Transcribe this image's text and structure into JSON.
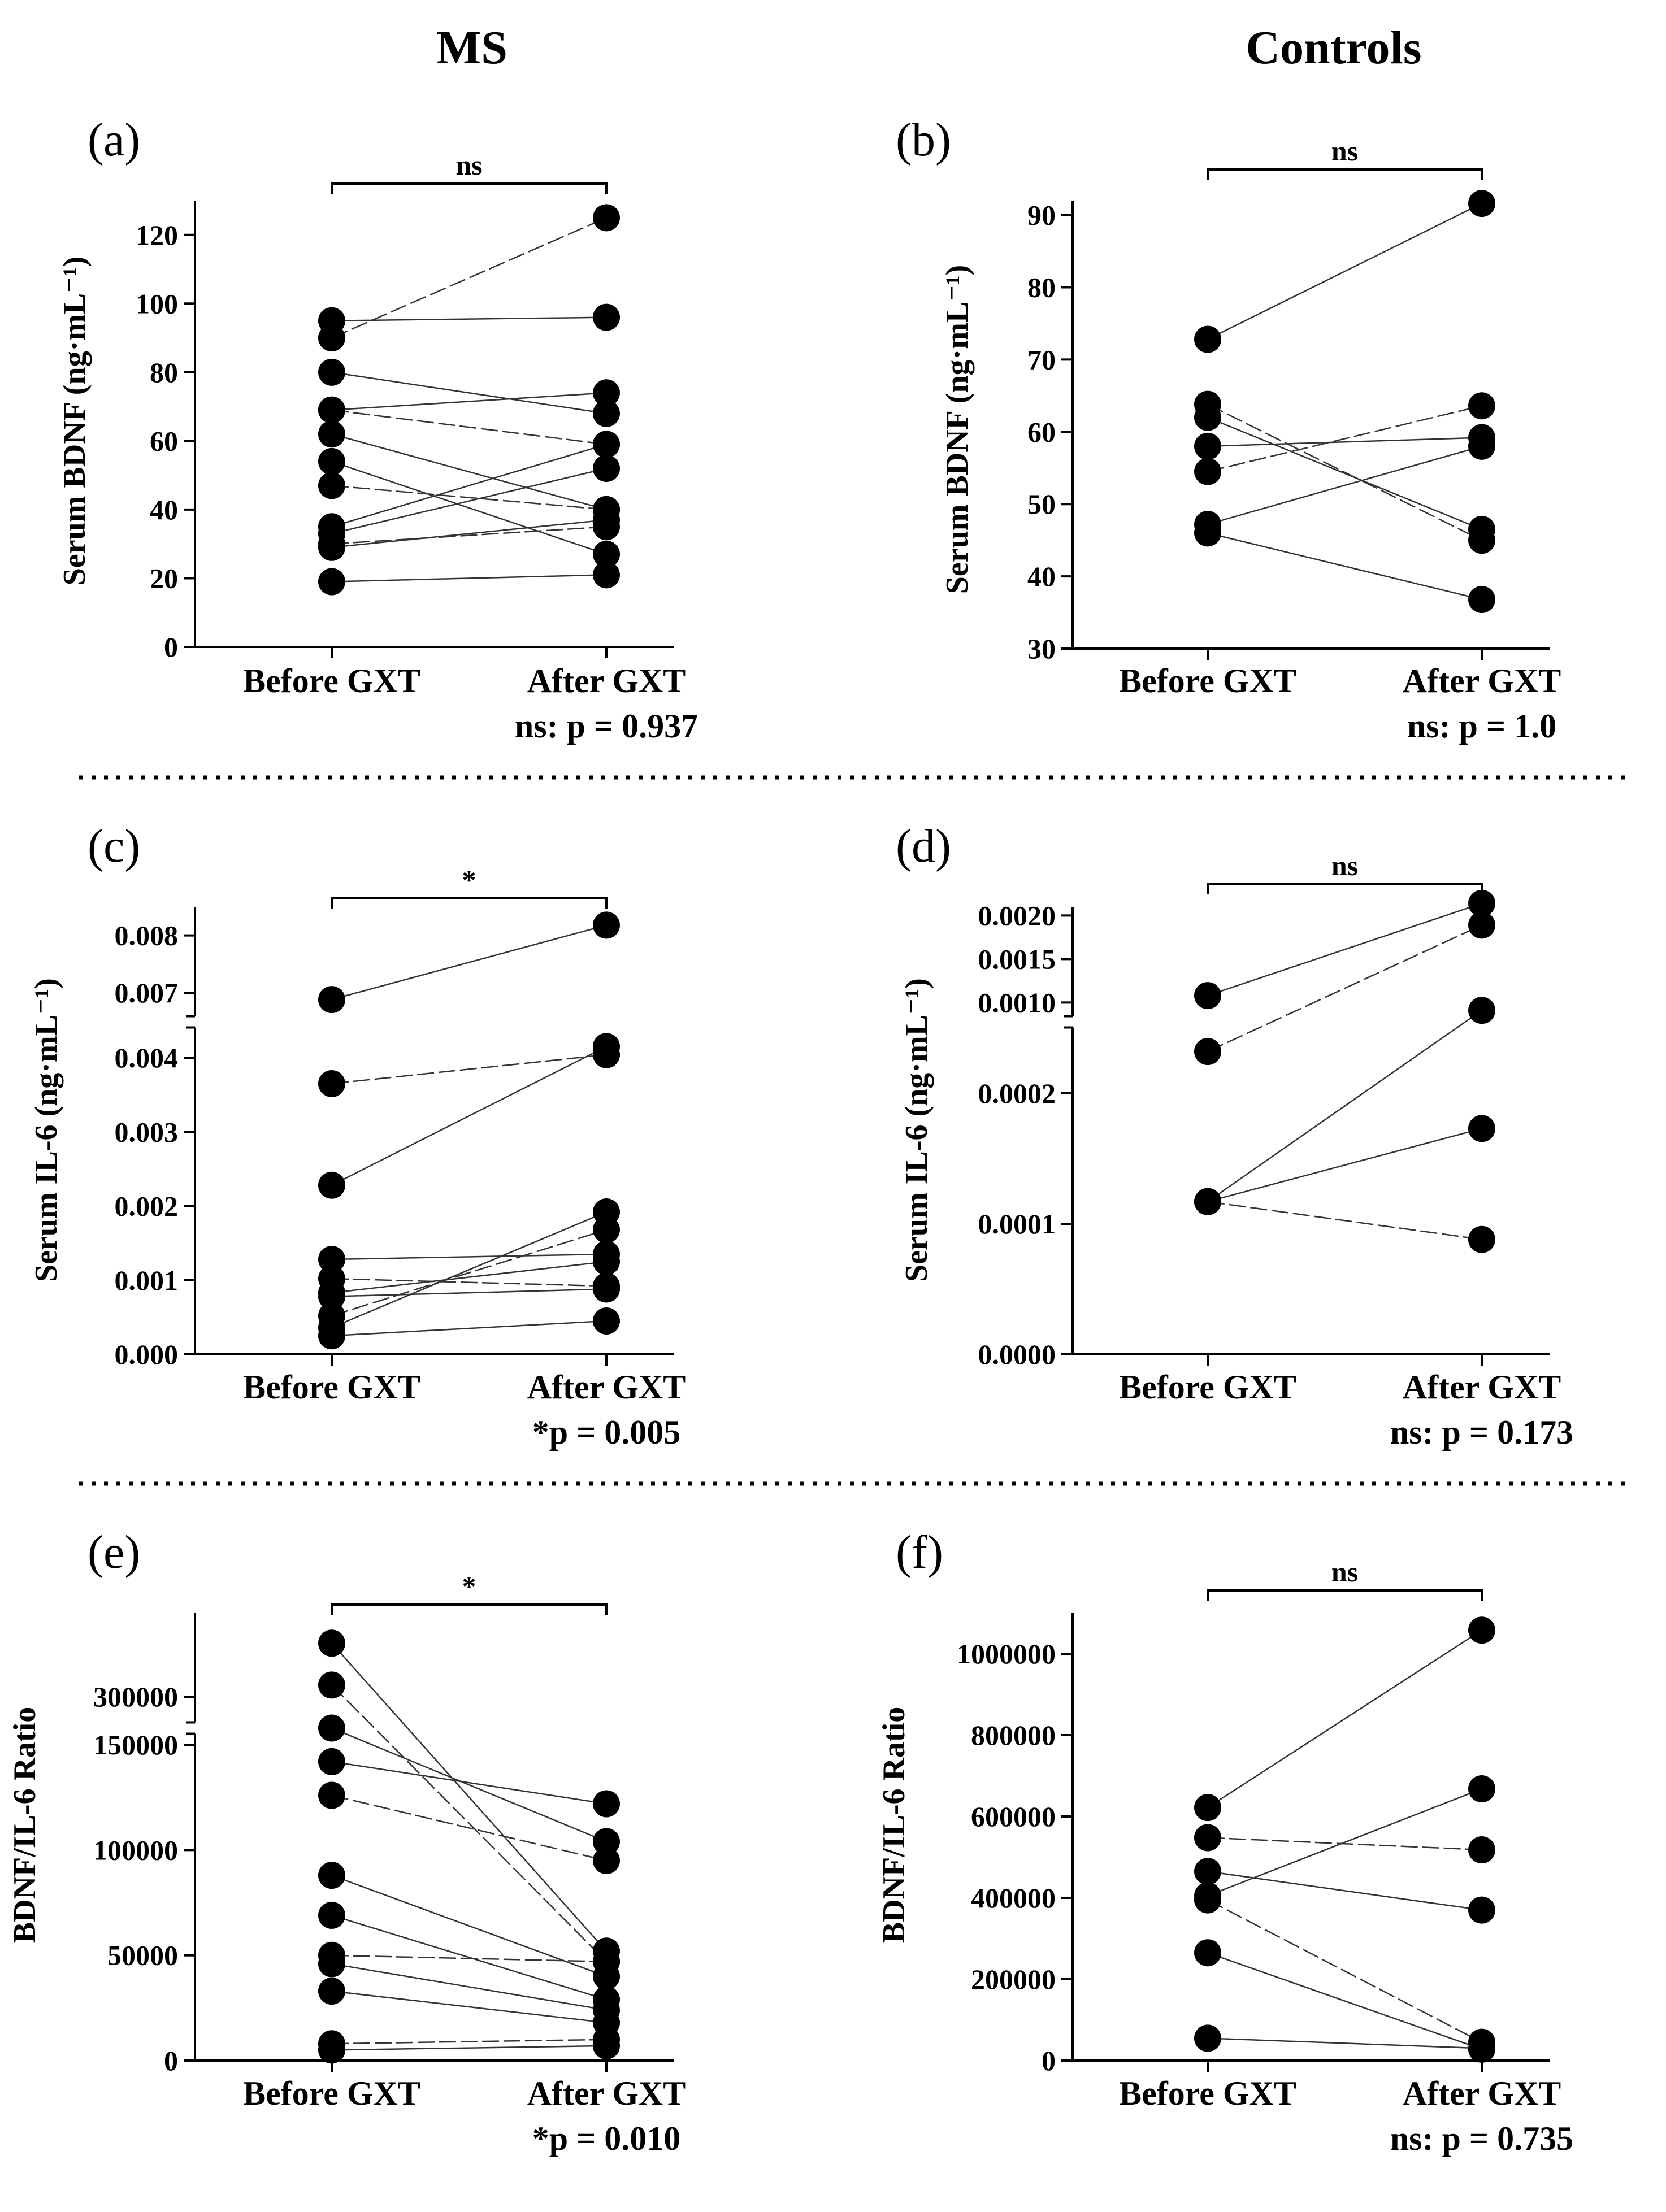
{
  "figure": {
    "column_titles": [
      "MS",
      "Controls"
    ]
  },
  "chart_data": [
    {
      "panel": "(a)",
      "type": "scatter",
      "ylabel": "Serum BDNF (ng·mL⁻¹)",
      "categories": [
        "Before GXT",
        "After GXT"
      ],
      "ylim": [
        0,
        130
      ],
      "yticks": [
        0,
        20,
        40,
        60,
        80,
        100,
        120
      ],
      "ytick_labels": [
        "0",
        "20",
        "40",
        "60",
        "80",
        "100",
        "120"
      ],
      "axis_break": null,
      "significance": "ns",
      "stat_note": "ns: p = 0.937",
      "pairs": [
        [
          95,
          96
        ],
        [
          90,
          125
        ],
        [
          80,
          68
        ],
        [
          69,
          74
        ],
        [
          69,
          59
        ],
        [
          62,
          40
        ],
        [
          54,
          27
        ],
        [
          47,
          40
        ],
        [
          35,
          59
        ],
        [
          33,
          52
        ],
        [
          30,
          35
        ],
        [
          29,
          37
        ],
        [
          19,
          21
        ]
      ]
    },
    {
      "panel": "(b)",
      "type": "scatter",
      "ylabel": "Serum BDNF (ng·mL⁻¹)",
      "categories": [
        "Before GXT",
        "After GXT"
      ],
      "ylim": [
        30,
        92
      ],
      "yticks": [
        30,
        40,
        50,
        60,
        70,
        80,
        90
      ],
      "ytick_labels": [
        "30",
        "40",
        "50",
        "60",
        "70",
        "80",
        "90"
      ],
      "axis_break": null,
      "significance": "ns",
      "stat_note": "ns: p = 1.0",
      "pairs": [
        [
          72.8,
          91.6
        ],
        [
          63.8,
          45
        ],
        [
          62,
          46.5
        ],
        [
          58,
          59.2
        ],
        [
          54.5,
          63.6
        ],
        [
          47.2,
          58
        ],
        [
          46,
          36.8
        ]
      ]
    },
    {
      "panel": "(c)",
      "type": "scatter",
      "ylabel": "Serum IL-6 (ng·mL⁻¹)",
      "categories": [
        "Before GXT",
        "After GXT"
      ],
      "ylim": [
        0,
        0.0085
      ],
      "yticks": [
        0,
        0.001,
        0.002,
        0.003,
        0.004,
        0.007,
        0.008
      ],
      "ytick_labels": [
        "0.000",
        "0.001",
        "0.002",
        "0.003",
        "0.004",
        "0.007",
        "0.008"
      ],
      "axis_break": [
        0.0044,
        0.0066
      ],
      "significance": "*",
      "stat_note": "*p = 0.005",
      "pairs": [
        [
          0.00688,
          0.00818
        ],
        [
          0.00365,
          0.00404
        ],
        [
          0.00228,
          0.00415
        ],
        [
          0.00128,
          0.00135
        ],
        [
          0.00102,
          0.00092
        ],
        [
          0.00083,
          0.00125
        ],
        [
          0.00078,
          0.00088
        ],
        [
          0.00052,
          0.00168
        ],
        [
          0.00036,
          0.00192
        ],
        [
          0.00025,
          0.00045
        ]
      ]
    },
    {
      "panel": "(d)",
      "type": "scatter",
      "ylabel": "Serum IL-6 (ng·mL⁻¹)",
      "categories": [
        "Before GXT",
        "After GXT"
      ],
      "ylim": [
        0,
        0.0021
      ],
      "yticks": [
        0,
        0.0001,
        0.0002,
        0.001,
        0.0015,
        0.002
      ],
      "ytick_labels": [
        "0.0000",
        "0.0001",
        "0.0002",
        "0.0010",
        "0.0015",
        "0.0020"
      ],
      "axis_break": [
        0.00025,
        0.00085
      ],
      "significance": "ns",
      "stat_note": "ns: p = 0.173",
      "pairs": [
        [
          0.00108,
          0.00214
        ],
        [
          0.000232,
          0.00189
        ],
        [
          0.000117,
          0.00091
        ],
        [
          0.000117,
          0.000173
        ],
        [
          0.000117,
          8.8e-05
        ]
      ]
    },
    {
      "panel": "(e)",
      "type": "scatter",
      "ylabel": "BDNF/IL-6 Ratio",
      "categories": [
        "Before GXT",
        "After GXT"
      ],
      "ylim": [
        0,
        350000
      ],
      "yticks": [
        0,
        50000,
        100000,
        150000,
        300000
      ],
      "ytick_labels": [
        "0",
        "50000",
        "100000",
        "150000",
        "300000"
      ],
      "axis_break": [
        155000,
        285000
      ],
      "significance": "*",
      "stat_note": "*p = 0.010",
      "pairs": [
        [
          332000,
          52000
        ],
        [
          307000,
          47000
        ],
        [
          238000,
          104000
        ],
        [
          142000,
          122000
        ],
        [
          126000,
          95000
        ],
        [
          88000,
          40000
        ],
        [
          69000,
          29000
        ],
        [
          50000,
          47000
        ],
        [
          46000,
          24000
        ],
        [
          33000,
          18000
        ],
        [
          8000,
          10000
        ],
        [
          5000,
          7000
        ]
      ]
    },
    {
      "panel": "(f)",
      "type": "scatter",
      "ylabel": "BDNF/IL-6 Ratio",
      "categories": [
        "Before GXT",
        "After GXT"
      ],
      "ylim": [
        0,
        1100000
      ],
      "yticks": [
        0,
        200000,
        400000,
        600000,
        800000,
        1000000
      ],
      "ytick_labels": [
        "0",
        "200000",
        "400000",
        "600000",
        "800000",
        "1000000"
      ],
      "axis_break": null,
      "significance": "ns",
      "stat_note": "ns: p = 0.735",
      "pairs": [
        [
          622000,
          1058000
        ],
        [
          548000,
          518000
        ],
        [
          465000,
          370000
        ],
        [
          405000,
          668000
        ],
        [
          395000,
          45000
        ],
        [
          265000,
          28000
        ],
        [
          55000,
          30000
        ]
      ]
    }
  ]
}
